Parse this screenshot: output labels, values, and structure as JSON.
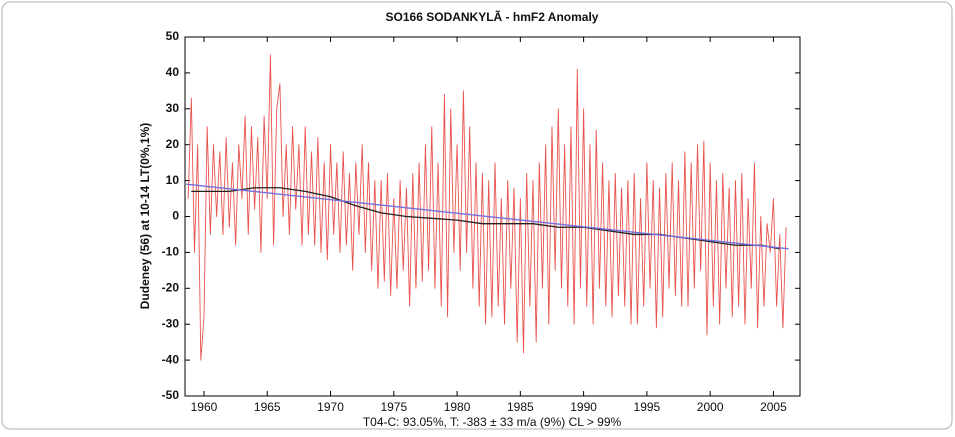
{
  "chart_data": {
    "type": "line",
    "title": "SO166 SODANKYLÃ - hmF2 Anomaly",
    "y_label": "Dudeney (56) at 10-14 LT(0%,1%)",
    "x_label": "T04-C: 93.05%, T: -383  ± 33 m/a (9%) CL > 99%",
    "xlim": [
      1958.5,
      2007.1
    ],
    "ylim": [
      -50,
      50
    ],
    "xticks": [
      1960,
      1965,
      1970,
      1975,
      1980,
      1985,
      1990,
      1995,
      2000,
      2005
    ],
    "yticks": [
      -50,
      -40,
      -30,
      -20,
      -10,
      0,
      10,
      20,
      30,
      40,
      50
    ],
    "grid": false,
    "series": [
      {
        "color": "#e8534f",
        "x": [
          1958.75,
          1959,
          1959.25,
          1959.5,
          1959.75,
          1960,
          1960.25,
          1960.5,
          1960.75,
          1961,
          1961.25,
          1961.5,
          1961.75,
          1962,
          1962.25,
          1962.5,
          1962.75,
          1963,
          1963.25,
          1963.5,
          1963.75,
          1964,
          1964.25,
          1964.5,
          1964.75,
          1965,
          1965.25,
          1965.5,
          1965.75,
          1966,
          1966.25,
          1966.5,
          1966.75,
          1967,
          1967.25,
          1967.5,
          1967.75,
          1968,
          1968.25,
          1968.5,
          1968.75,
          1969,
          1969.25,
          1969.5,
          1969.75,
          1970,
          1970.25,
          1970.5,
          1970.75,
          1971,
          1971.25,
          1971.5,
          1971.75,
          1972,
          1972.25,
          1972.5,
          1972.75,
          1973,
          1973.25,
          1973.5,
          1973.75,
          1974,
          1974.25,
          1974.5,
          1974.75,
          1975,
          1975.25,
          1975.5,
          1975.75,
          1976,
          1976.25,
          1976.5,
          1976.75,
          1977,
          1977.25,
          1977.5,
          1977.75,
          1978,
          1978.25,
          1978.5,
          1978.75,
          1979,
          1979.25,
          1979.5,
          1979.75,
          1980,
          1980.25,
          1980.5,
          1980.75,
          1981,
          1981.25,
          1981.5,
          1981.75,
          1982,
          1982.25,
          1982.5,
          1982.75,
          1983,
          1983.25,
          1983.5,
          1983.75,
          1984,
          1984.25,
          1984.5,
          1984.75,
          1985,
          1985.25,
          1985.5,
          1985.75,
          1986,
          1986.25,
          1986.5,
          1986.75,
          1987,
          1987.25,
          1987.5,
          1987.75,
          1988,
          1988.25,
          1988.5,
          1988.75,
          1989,
          1989.25,
          1989.5,
          1989.75,
          1990,
          1990.25,
          1990.5,
          1990.75,
          1991,
          1991.25,
          1991.5,
          1991.75,
          1992,
          1992.25,
          1992.5,
          1992.75,
          1993,
          1993.25,
          1993.5,
          1993.75,
          1994,
          1994.25,
          1994.5,
          1994.75,
          1995,
          1995.25,
          1995.5,
          1995.75,
          1996,
          1996.25,
          1996.5,
          1996.75,
          1997,
          1997.25,
          1997.5,
          1997.75,
          1998,
          1998.25,
          1998.5,
          1998.75,
          1999,
          1999.25,
          1999.5,
          1999.75,
          2000,
          2000.25,
          2000.5,
          2000.75,
          2001,
          2001.25,
          2001.5,
          2001.75,
          2002,
          2002.25,
          2002.5,
          2002.75,
          2003,
          2003.25,
          2003.5,
          2003.75,
          2004,
          2004.25,
          2004.5,
          2004.75,
          2005,
          2005.25,
          2005.5,
          2005.75,
          2006
        ],
        "values": [
          5,
          33,
          -10,
          20,
          -40,
          -28,
          25,
          -5,
          20,
          0,
          18,
          -5,
          22,
          -3,
          15,
          -8,
          20,
          5,
          28,
          -5,
          25,
          2,
          22,
          -10,
          28,
          5,
          45,
          -8,
          30,
          37,
          0,
          20,
          -5,
          25,
          2,
          20,
          -8,
          25,
          -5,
          18,
          -8,
          22,
          -10,
          15,
          -12,
          20,
          -5,
          15,
          -10,
          18,
          -8,
          12,
          -15,
          15,
          -5,
          20,
          -10,
          15,
          -15,
          10,
          -20,
          10,
          -18,
          12,
          -22,
          5,
          -20,
          10,
          -15,
          8,
          -25,
          12,
          -20,
          15,
          -18,
          20,
          -15,
          25,
          -20,
          15,
          -25,
          34,
          -28,
          30,
          -10,
          20,
          -15,
          35,
          -10,
          25,
          -20,
          15,
          -25,
          12,
          -30,
          10,
          -28,
          15,
          -25,
          5,
          -30,
          10,
          -20,
          8,
          -35,
          5,
          -38,
          12,
          -25,
          10,
          -35,
          15,
          -20,
          20,
          -30,
          25,
          -15,
          30,
          -20,
          20,
          -25,
          25,
          -30,
          41,
          -20,
          30,
          -25,
          20,
          -30,
          24,
          -20,
          15,
          -25,
          10,
          -28,
          12,
          -22,
          8,
          -25,
          10,
          -30,
          12,
          -30,
          5,
          -25,
          15,
          -20,
          10,
          -31,
          8,
          -28,
          12,
          -20,
          15,
          -22,
          10,
          -25,
          18,
          -25,
          15,
          -20,
          20,
          -15,
          21,
          -33,
          15,
          -25,
          10,
          -30,
          12,
          -20,
          8,
          -28,
          10,
          -25,
          12,
          -30,
          5,
          -20,
          15,
          -31,
          0,
          -25,
          -2,
          -10,
          5,
          -25,
          -5,
          -31,
          -3
        ]
      },
      {
        "color": "#222222",
        "x": [
          1959,
          1962,
          1964,
          1966,
          1968,
          1970,
          1972,
          1974,
          1976,
          1978,
          1980,
          1982,
          1984,
          1986,
          1988,
          1990,
          1992,
          1994,
          1996,
          1998,
          2000,
          2002,
          2004,
          2005.5
        ],
        "values": [
          7,
          7,
          8,
          8,
          7,
          5.5,
          3,
          1,
          0,
          -0.5,
          -1,
          -2,
          -2,
          -2,
          -3,
          -3,
          -4,
          -5,
          -5,
          -6,
          -7,
          -8,
          -8,
          -9
        ]
      },
      {
        "color": "#7070e0",
        "x": [
          1958.6,
          2006.2
        ],
        "values": [
          9,
          -9
        ]
      }
    ]
  }
}
